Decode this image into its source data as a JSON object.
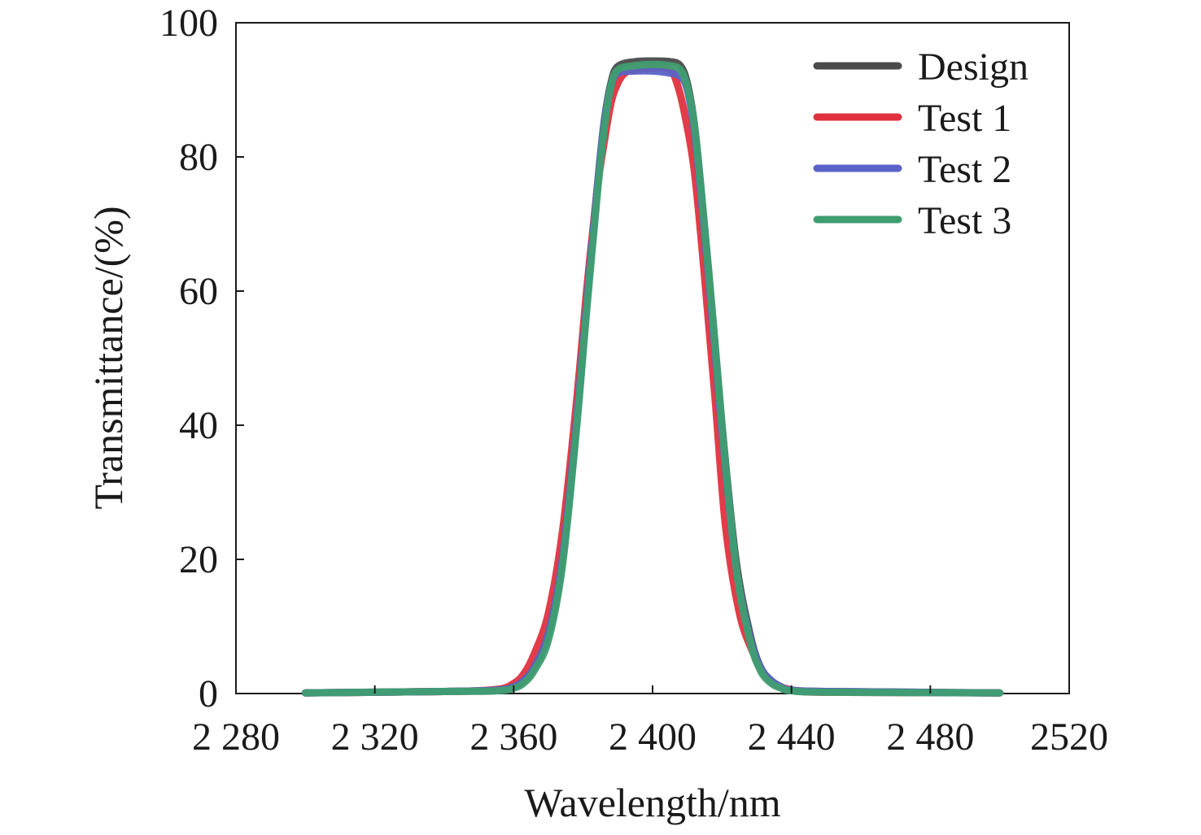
{
  "chart_data": {
    "type": "line",
    "title": "",
    "xlabel": "Wavelength/nm",
    "ylabel": "Transmittance/(%)",
    "xlim": [
      2280,
      2520
    ],
    "ylim": [
      0,
      100
    ],
    "x_ticks": [
      2280,
      2320,
      2360,
      2400,
      2440,
      2480,
      2520
    ],
    "x_tick_labels": [
      "2 280",
      "2 320",
      "2 360",
      "2 400",
      "2 440",
      "2 480",
      "2520"
    ],
    "y_ticks": [
      0,
      20,
      40,
      60,
      80,
      100
    ],
    "y_tick_labels": [
      "0",
      "20",
      "40",
      "60",
      "80",
      "100"
    ],
    "grid": false,
    "legend_position": "top-right",
    "series": [
      {
        "name": "Design",
        "color": "#4a4a4a",
        "x": [
          2300,
          2340,
          2355,
          2360,
          2363,
          2366,
          2370,
          2374,
          2378,
          2381,
          2384,
          2386,
          2388,
          2390,
          2395,
          2400,
          2405,
          2408,
          2410,
          2412,
          2414,
          2417,
          2420,
          2424,
          2428,
          2431,
          2434,
          2437,
          2440,
          2450,
          2500
        ],
        "y": [
          0.1,
          0.3,
          0.5,
          1,
          2,
          4,
          9,
          20,
          40,
          58,
          75,
          85,
          91,
          93.5,
          94.2,
          94.3,
          94.2,
          93.6,
          91,
          85,
          75,
          58,
          40,
          20,
          9,
          4,
          2,
          1,
          0.5,
          0.3,
          0.1
        ]
      },
      {
        "name": "Test 1",
        "color": "#e0323e",
        "x": [
          2300,
          2340,
          2355,
          2360,
          2363,
          2366,
          2370,
          2374,
          2378,
          2381,
          2384,
          2386,
          2388,
          2390,
          2392,
          2395,
          2400,
          2405,
          2407,
          2409,
          2412,
          2415,
          2418,
          2421,
          2425,
          2429,
          2432,
          2435,
          2438,
          2442,
          2450,
          2500
        ],
        "y": [
          0.1,
          0.3,
          0.6,
          1.5,
          3,
          6,
          12,
          24,
          43,
          60,
          75,
          82,
          88,
          91,
          92.5,
          93,
          93.2,
          93,
          91,
          87,
          78,
          62,
          44,
          25,
          12,
          6,
          3,
          1.5,
          0.8,
          0.4,
          0.2,
          0.1
        ]
      },
      {
        "name": "Test 2",
        "color": "#5a62c6",
        "x": [
          2300,
          2340,
          2355,
          2360,
          2363,
          2366,
          2370,
          2374,
          2378,
          2381,
          2384,
          2386,
          2388,
          2390,
          2395,
          2400,
          2405,
          2408,
          2410,
          2412,
          2414,
          2417,
          2420,
          2424,
          2428,
          2431,
          2434,
          2437,
          2440,
          2450,
          2500
        ],
        "y": [
          0.1,
          0.3,
          0.5,
          1,
          2,
          4,
          9,
          20,
          40,
          58,
          75,
          85,
          90.5,
          92.5,
          92.8,
          92.8,
          92.5,
          92,
          90,
          84,
          74,
          57,
          39,
          19,
          8.5,
          4,
          2,
          1,
          0.5,
          0.3,
          0.1
        ]
      },
      {
        "name": "Test 3",
        "color": "#3f9e70",
        "x": [
          2300,
          2340,
          2355,
          2360,
          2363,
          2366,
          2370,
          2374,
          2378,
          2381,
          2384,
          2386,
          2388,
          2390,
          2395,
          2400,
          2405,
          2408,
          2410,
          2412,
          2414,
          2417,
          2420,
          2424,
          2428,
          2431,
          2434,
          2437,
          2440,
          2450,
          2500
        ],
        "y": [
          0.1,
          0.3,
          0.4,
          0.8,
          1.6,
          3.5,
          8,
          19,
          39,
          57,
          74,
          84,
          90.5,
          93,
          93.6,
          93.8,
          93.6,
          93,
          90.5,
          85,
          75,
          58,
          40,
          19,
          8,
          3.5,
          1.6,
          0.8,
          0.4,
          0.2,
          0.1
        ]
      }
    ]
  }
}
